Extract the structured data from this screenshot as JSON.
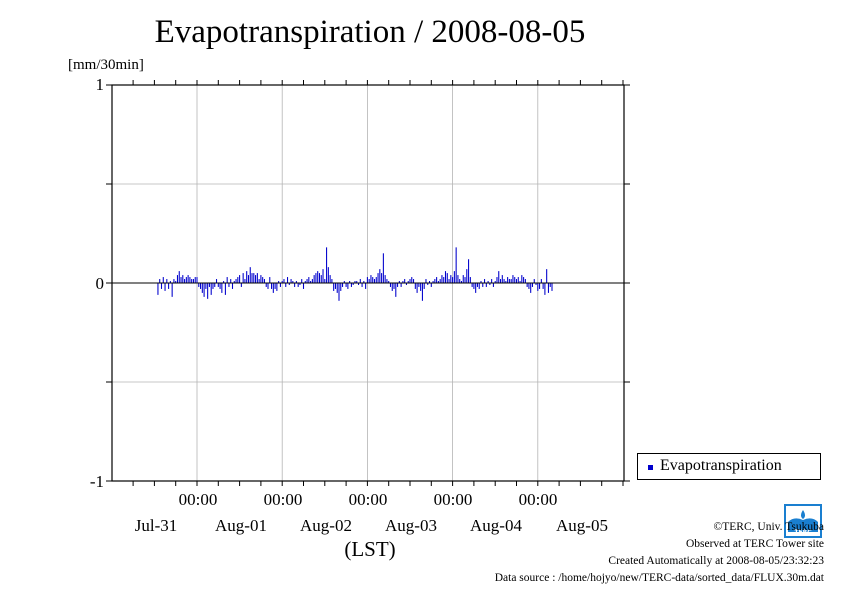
{
  "title": "Evapotranspiration / 2008-08-05",
  "ylabel": "[mm/30min]",
  "xlabel": "(LST)",
  "colors": {
    "series": "#0000cc",
    "grid": "#b4b4b4",
    "axis": "#000000"
  },
  "chart_data": {
    "type": "bar",
    "title": "Evapotranspiration / 2008-08-05",
    "ylabel": "[mm/30min]",
    "xlabel": "(LST)",
    "ylim": [
      -1,
      1
    ],
    "yticks": [
      "1",
      "0",
      "-1"
    ],
    "x_time_labels": [
      "00:00",
      "00:00",
      "00:00",
      "00:00",
      "00:00"
    ],
    "x_date_labels": [
      "Jul-31",
      "Aug-01",
      "Aug-02",
      "Aug-03",
      "Aug-04",
      "Aug-05"
    ],
    "grid": true,
    "legend_position": "right-bottom",
    "interval": "30min",
    "x_start": "2008-07-30 13:00",
    "series": [
      {
        "name": "Evapotranspiration",
        "values": [
          -0.06,
          0.02,
          -0.03,
          0.03,
          -0.04,
          0.02,
          -0.03,
          0.01,
          -0.07,
          0.02,
          0.01,
          0.04,
          0.06,
          0.03,
          0.04,
          0.02,
          0.03,
          0.04,
          0.03,
          0.02,
          0.02,
          0.03,
          0.03,
          -0.02,
          -0.03,
          -0.05,
          -0.07,
          -0.03,
          -0.08,
          -0.02,
          -0.06,
          -0.03,
          -0.02,
          0.02,
          -0.02,
          -0.03,
          -0.05,
          0.01,
          -0.06,
          0.03,
          -0.02,
          0.02,
          -0.03,
          0.01,
          0.02,
          0.03,
          0.04,
          -0.02,
          0.05,
          0.02,
          0.06,
          0.04,
          0.08,
          0.05,
          0.05,
          0.04,
          0.05,
          0.02,
          0.04,
          0.03,
          0.02,
          -0.02,
          -0.03,
          0.03,
          -0.03,
          -0.05,
          -0.03,
          -0.04,
          0.01,
          -0.02,
          0.01,
          0.02,
          -0.02,
          0.03,
          -0.01,
          0.02,
          0.01,
          -0.02,
          0.01,
          -0.02,
          -0.01,
          0.02,
          -0.03,
          0.01,
          0.02,
          0.03,
          0.01,
          0.02,
          0.04,
          0.05,
          0.06,
          0.05,
          0.04,
          0.07,
          0.02,
          0.18,
          0.08,
          0.04,
          0.02,
          -0.04,
          -0.03,
          -0.05,
          -0.09,
          -0.04,
          -0.02,
          0.01,
          -0.02,
          -0.03,
          0.01,
          -0.02,
          -0.01,
          0.01,
          0.01,
          -0.01,
          0.02,
          -0.02,
          0.01,
          -0.03,
          0.03,
          0.02,
          0.04,
          0.03,
          0.02,
          0.03,
          0.05,
          0.07,
          0.05,
          0.15,
          0.04,
          0.02,
          0.01,
          -0.02,
          -0.04,
          -0.03,
          -0.07,
          -0.02,
          0.01,
          -0.02,
          0.01,
          0.02,
          -0.01,
          0.01,
          0.02,
          0.03,
          0.02,
          -0.03,
          -0.05,
          -0.02,
          -0.04,
          -0.09,
          -0.03,
          0.02,
          -0.01,
          0.01,
          -0.02,
          0.01,
          0.02,
          0.03,
          0.01,
          0.02,
          0.04,
          0.03,
          0.06,
          0.05,
          0.02,
          0.04,
          0.03,
          0.06,
          0.18,
          0.04,
          0.02,
          0.01,
          0.04,
          0.03,
          0.07,
          0.12,
          0.03,
          -0.02,
          -0.03,
          -0.05,
          -0.02,
          -0.03,
          0.01,
          -0.02,
          0.02,
          -0.02,
          0.01,
          -0.01,
          0.02,
          -0.02,
          0.01,
          0.03,
          0.06,
          0.02,
          0.04,
          0.02,
          0.01,
          0.03,
          0.02,
          0.02,
          0.04,
          0.03,
          0.02,
          0.03,
          0.01,
          0.04,
          0.03,
          0.02,
          -0.02,
          -0.03,
          -0.05,
          -0.02,
          0.02,
          -0.01,
          -0.04,
          -0.03,
          0.02,
          -0.03,
          -0.06,
          0.07,
          -0.05,
          -0.02,
          -0.04
        ]
      }
    ]
  },
  "legend": {
    "label": "Evapotranspiration"
  },
  "credits": {
    "org": "©TERC, Univ. Tsukuba",
    "site": "Observed at TERC Tower site",
    "created": "Created Automatically at 2008-08-05/23:32:23",
    "source": "Data source : /home/hojyo/new/TERC-data/sorted_data/FLUX.30m.dat",
    "logo_text": "TERC"
  }
}
